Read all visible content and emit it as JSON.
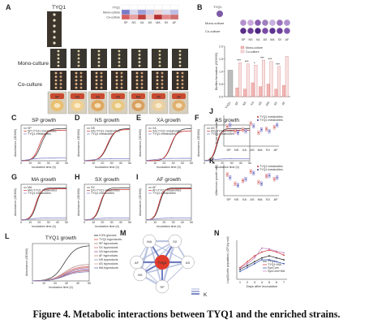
{
  "caption": "Figure 4. Metabolic interactions between TYQ1 and the enriched strains.",
  "strains": [
    "SP",
    "NS",
    "XA",
    "AS",
    "MA",
    "SX",
    "AF"
  ],
  "panelA": {
    "letter": "A",
    "tyq1_label": "TYQ1",
    "row_mono": "Mono-culture",
    "row_co": "Co-culture",
    "heat_rows": [
      "TYQ1",
      "Mono-culture",
      "Co-culture"
    ],
    "heat_cols": [
      "SP",
      "NS",
      "XA",
      "AS",
      "MA",
      "SX",
      "AF"
    ]
  },
  "panelB": {
    "letter": "B",
    "tyq1_label": "TYQ1",
    "row_mono": "Mono-culture",
    "row_co": "Co-culture",
    "legend": [
      "Mono-culture",
      "Co-culture"
    ],
    "ylabel": "Biofilm formation (OD595)",
    "yticks": [
      "0.0",
      "0.5",
      "1.0",
      "1.5",
      "2.0"
    ],
    "xcats": [
      "TYQ1",
      "SP",
      "NS",
      "XA",
      "AS",
      "MA",
      "SX",
      "AF"
    ],
    "stars": [
      "",
      "***",
      "***",
      "*",
      "***",
      "***",
      "***",
      ""
    ]
  },
  "chart_data": [
    {
      "panel": "C",
      "type": "line",
      "title": "SP growth",
      "xlabel": "Incubation time (h)",
      "ylabel": "Absorbance (OD600)",
      "series": [
        {
          "name": "SP"
        },
        {
          "name": "SP+TYQ1 metabolites"
        },
        {
          "name": "TYQ1 metabolites"
        }
      ]
    },
    {
      "panel": "D",
      "type": "line",
      "title": "NS growth",
      "xlabel": "Incubation time (h)",
      "ylabel": "Absorbance (OD600)",
      "series": [
        {
          "name": "NS"
        },
        {
          "name": "NS+TYQ1 metabolites"
        },
        {
          "name": "TYQ1 metabolites"
        }
      ]
    },
    {
      "panel": "E",
      "type": "line",
      "title": "XA growth",
      "xlabel": "Incubation time (h)",
      "ylabel": "Absorbance (OD600)",
      "series": [
        {
          "name": "XA"
        },
        {
          "name": "XA+TYQ1 metabolites"
        },
        {
          "name": "TYQ1 metabolites"
        }
      ]
    },
    {
      "panel": "F",
      "type": "line",
      "title": "AS growth",
      "xlabel": "Incubation time (h)",
      "ylabel": "Absorbance (OD600)",
      "series": [
        {
          "name": "AS"
        },
        {
          "name": "AS+TYQ1 metabolites"
        },
        {
          "name": "TYQ1 metabolites"
        }
      ]
    },
    {
      "panel": "G",
      "type": "line",
      "title": "MA growth",
      "xlabel": "Incubation time (h)",
      "ylabel": "Absorbance (OD600)",
      "series": [
        {
          "name": "MA"
        },
        {
          "name": "MA+TYQ1 metabolites"
        },
        {
          "name": "TYQ1 metabolites"
        }
      ]
    },
    {
      "panel": "H",
      "type": "line",
      "title": "SX growth",
      "xlabel": "Incubation time (h)",
      "ylabel": "Absorbance (OD600)",
      "series": [
        {
          "name": "SX"
        },
        {
          "name": "SX+TYQ1 metabolites"
        },
        {
          "name": "TYQ1 metabolites"
        }
      ]
    },
    {
      "panel": "I",
      "type": "line",
      "title": "AF growth",
      "xlabel": "Incubation time (h)",
      "ylabel": "Absorbance (OD600)",
      "series": [
        {
          "name": "AF"
        },
        {
          "name": "AF+TYQ1 metabolites"
        },
        {
          "name": "TYQ1 metabolites"
        }
      ]
    },
    {
      "panel": "L",
      "type": "line",
      "title": "TYQ1 growth",
      "xlabel": "Incubation time (h)",
      "ylabel": "Absorbance (OD600)",
      "series": [
        {
          "name": "0.5% glucose"
        },
        {
          "name": "TYQ1 byproducts"
        },
        {
          "name": "SP byproducts"
        },
        {
          "name": "SX byproducts"
        },
        {
          "name": "XA byproducts"
        },
        {
          "name": "AF byproducts"
        },
        {
          "name": "NS byproducts"
        },
        {
          "name": "AS byproducts"
        },
        {
          "name": "MA byproducts"
        }
      ]
    },
    {
      "panel": "J",
      "type": "scatter",
      "ylabel": "K(carrying capacity)",
      "legend": [
        "TYQ1 metabolites",
        "TYQ1 metabolites"
      ],
      "categories": [
        "SP",
        "NS",
        "XA",
        "AS",
        "MA",
        "SX",
        "AF"
      ]
    },
    {
      "panel": "K",
      "type": "scatter",
      "ylabel": "r(Maximum growth rate)",
      "legend": [
        "TYQ1 metabolites",
        "TYQ1 metabolites"
      ],
      "categories": [
        "SP",
        "NS",
        "XA",
        "AS",
        "MA",
        "SX",
        "AF"
      ]
    },
    {
      "panel": "N",
      "type": "line",
      "ylabel": "Log10(cells population) (CFU/g soil)",
      "xlabel": "Days after inoculation",
      "x": [
        1,
        2,
        3,
        4,
        5,
        6,
        7
      ],
      "series": [
        {
          "name": "TYQ1"
        },
        {
          "name": "TYQ1+MA"
        },
        {
          "name": "SynCom"
        },
        {
          "name": "SynCom+MA"
        }
      ]
    }
  ],
  "panelM": {
    "letter": "M",
    "center": "TYQ1",
    "nodes": [
      "SX",
      "AS",
      "SP",
      "NS",
      "AF",
      "MA"
    ],
    "legend_k": "K"
  }
}
